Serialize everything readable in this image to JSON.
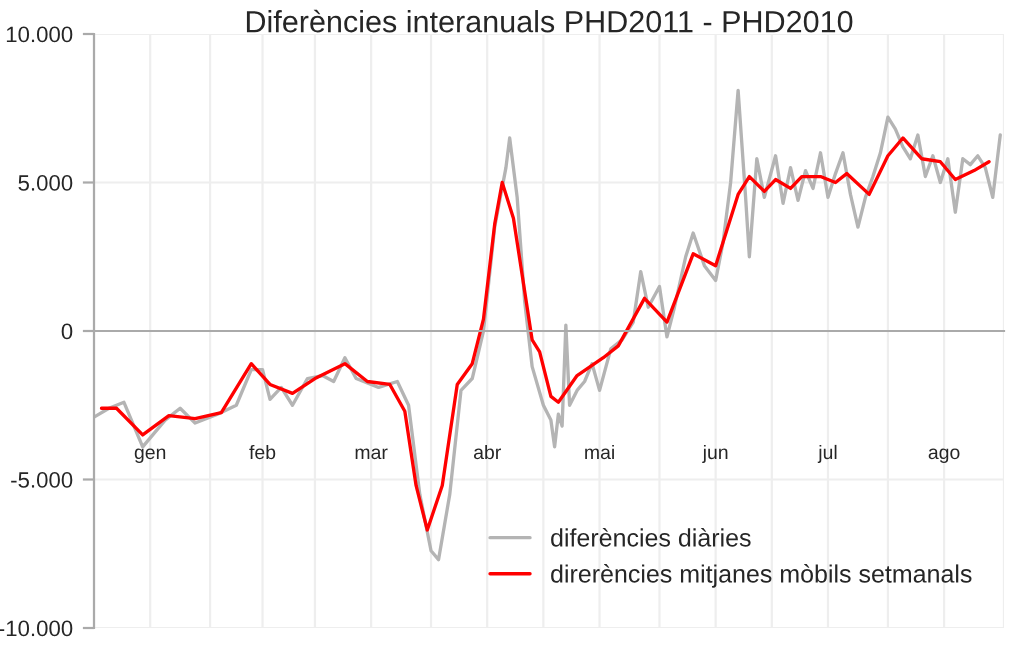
{
  "chart_data": {
    "type": "line",
    "title": "Diferències interanuals PHD2011 - PHD2010",
    "xlim": [
      "2011-01-01",
      "2011-09-01"
    ],
    "xticks": [
      {
        "value": "2011-01-01",
        "label": null
      },
      {
        "value": "2011-01-16",
        "label": "gen"
      },
      {
        "value": "2011-02-01",
        "label": null
      },
      {
        "value": "2011-02-15",
        "label": "feb"
      },
      {
        "value": "2011-03-01",
        "label": null
      },
      {
        "value": "2011-03-16",
        "label": "mar"
      },
      {
        "value": "2011-04-01",
        "label": null
      },
      {
        "value": "2011-04-16",
        "label": "abr"
      },
      {
        "value": "2011-05-01",
        "label": null
      },
      {
        "value": "2011-05-16",
        "label": "mai"
      },
      {
        "value": "2011-06-01",
        "label": null
      },
      {
        "value": "2011-06-16",
        "label": "jun"
      },
      {
        "value": "2011-07-01",
        "label": null
      },
      {
        "value": "2011-07-16",
        "label": "jul"
      },
      {
        "value": "2011-08-01",
        "label": null
      },
      {
        "value": "2011-08-16",
        "label": "ago"
      },
      {
        "value": "2011-09-01",
        "label": null
      }
    ],
    "ylim": [
      -10000,
      10000
    ],
    "yticks": [
      {
        "value": -10000,
        "label": "-10.000"
      },
      {
        "value": -5000,
        "label": "-5.000"
      },
      0,
      {
        "value": 5000,
        "label": "5.000"
      },
      {
        "value": 10000,
        "label": "10.000"
      }
    ],
    "grid": true,
    "legend": "bottom right",
    "series": [
      {
        "name": "diferències diàries",
        "color": "#b4b4b4",
        "x": [
          "2011-01-01",
          "2011-01-05",
          "2011-01-09",
          "2011-01-14",
          "2011-01-20",
          "2011-01-24",
          "2011-01-28",
          "2011-02-03",
          "2011-02-08",
          "2011-02-12",
          "2011-02-15",
          "2011-02-17",
          "2011-02-20",
          "2011-02-23",
          "2011-02-27",
          "2011-03-03",
          "2011-03-06",
          "2011-03-09",
          "2011-03-12",
          "2011-03-18",
          "2011-03-23",
          "2011-03-26",
          "2011-03-29",
          "2011-04-01",
          "2011-04-03",
          "2011-04-06",
          "2011-04-09",
          "2011-04-12",
          "2011-04-15",
          "2011-04-18",
          "2011-04-21",
          "2011-04-22",
          "2011-04-24",
          "2011-04-26",
          "2011-04-28",
          "2011-05-01",
          "2011-05-03",
          "2011-05-04",
          "2011-05-05",
          "2011-05-06",
          "2011-05-07",
          "2011-05-08",
          "2011-05-10",
          "2011-05-12",
          "2011-05-14",
          "2011-05-16",
          "2011-05-19",
          "2011-05-22",
          "2011-05-25",
          "2011-05-27",
          "2011-05-29",
          "2011-06-01",
          "2011-06-03",
          "2011-06-05",
          "2011-06-08",
          "2011-06-10",
          "2011-06-13",
          "2011-06-16",
          "2011-06-18",
          "2011-06-20",
          "2011-06-22",
          "2011-06-24",
          "2011-06-25",
          "2011-06-27",
          "2011-06-29",
          "2011-07-02",
          "2011-07-04",
          "2011-07-06",
          "2011-07-08",
          "2011-07-10",
          "2011-07-12",
          "2011-07-14",
          "2011-07-16",
          "2011-07-18",
          "2011-07-20",
          "2011-07-22",
          "2011-07-24",
          "2011-07-26",
          "2011-07-28",
          "2011-07-30",
          "2011-08-01",
          "2011-08-03",
          "2011-08-05",
          "2011-08-07",
          "2011-08-09",
          "2011-08-11",
          "2011-08-13",
          "2011-08-15",
          "2011-08-17",
          "2011-08-19",
          "2011-08-21",
          "2011-08-23",
          "2011-08-25",
          "2011-08-27",
          "2011-08-29",
          "2011-08-31"
        ],
        "values": [
          -2900,
          -2600,
          -2400,
          -3900,
          -3000,
          -2600,
          -3100,
          -2800,
          -2500,
          -1300,
          -1300,
          -2300,
          -1900,
          -2500,
          -1600,
          -1500,
          -1700,
          -900,
          -1600,
          -1900,
          -1700,
          -2500,
          -5500,
          -7400,
          -7700,
          -5500,
          -2000,
          -1600,
          0,
          3500,
          5500,
          6500,
          4500,
          1000,
          -1200,
          -2500,
          -3000,
          -3900,
          -2800,
          -3200,
          200,
          -2500,
          -2000,
          -1700,
          -1100,
          -2000,
          -600,
          -300,
          300,
          2000,
          800,
          1500,
          -200,
          800,
          2500,
          3300,
          2200,
          1700,
          3000,
          5000,
          8100,
          4500,
          2500,
          5800,
          4500,
          5900,
          4300,
          5500,
          4400,
          5400,
          4800,
          6000,
          4500,
          5300,
          6000,
          4600,
          3500,
          4500,
          5200,
          6000,
          7200,
          6800,
          6200,
          5800,
          6600,
          5200,
          5900,
          5000,
          5800,
          4000,
          5800,
          5600,
          5900,
          5500,
          4500,
          6600
        ]
      },
      {
        "name": "direrències mitjanes mòbils setmanals",
        "color": "#ff0000",
        "x": [
          "2011-01-03",
          "2011-01-07",
          "2011-01-14",
          "2011-01-21",
          "2011-01-28",
          "2011-02-04",
          "2011-02-12",
          "2011-02-17",
          "2011-02-23",
          "2011-03-01",
          "2011-03-09",
          "2011-03-15",
          "2011-03-21",
          "2011-03-25",
          "2011-03-28",
          "2011-03-31",
          "2011-04-04",
          "2011-04-08",
          "2011-04-12",
          "2011-04-15",
          "2011-04-18",
          "2011-04-20",
          "2011-04-23",
          "2011-04-28",
          "2011-04-30",
          "2011-05-03",
          "2011-05-05",
          "2011-05-10",
          "2011-05-17",
          "2011-05-21",
          "2011-05-28",
          "2011-06-03",
          "2011-06-10",
          "2011-06-16",
          "2011-06-22",
          "2011-06-25",
          "2011-06-29",
          "2011-07-02",
          "2011-07-06",
          "2011-07-09",
          "2011-07-14",
          "2011-07-18",
          "2011-07-21",
          "2011-07-27",
          "2011-08-01",
          "2011-08-05",
          "2011-08-10",
          "2011-08-15",
          "2011-08-19",
          "2011-08-24",
          "2011-08-28"
        ],
        "values": [
          -2600,
          -2600,
          -3500,
          -2850,
          -2950,
          -2750,
          -1100,
          -1800,
          -2100,
          -1600,
          -1100,
          -1700,
          -1800,
          -2700,
          -5200,
          -6700,
          -5200,
          -1800,
          -1100,
          400,
          3600,
          5000,
          3800,
          -300,
          -700,
          -2200,
          -2400,
          -1500,
          -900,
          -500,
          1100,
          300,
          2600,
          2200,
          4600,
          5200,
          4700,
          5100,
          4800,
          5200,
          5200,
          5000,
          5300,
          4600,
          5900,
          6500,
          5800,
          5700,
          5100,
          5400,
          5700
        ]
      }
    ]
  }
}
